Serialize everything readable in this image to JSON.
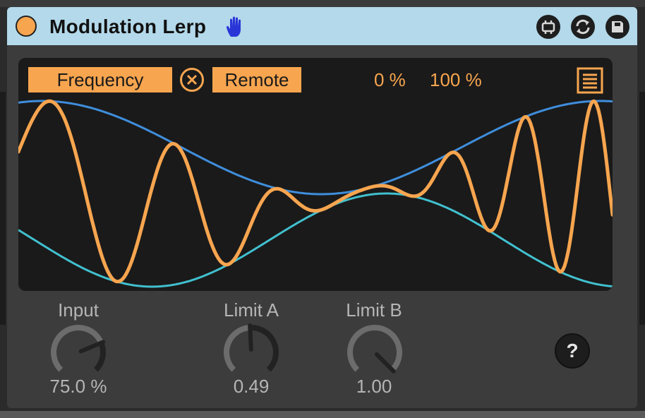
{
  "device": {
    "title": "Modulation Lerp",
    "colors": {
      "accent": "#f7a54f",
      "titlebar": "#b3d9ea",
      "limit_a_curve": "#3f8edc",
      "limit_b_curve": "#41c0cf",
      "panel": "#3c3c3c"
    },
    "icons": {
      "hand": "hand-icon",
      "map": "map-icon",
      "refresh": "refresh-icon",
      "save": "save-icon"
    }
  },
  "display": {
    "parameter_label": "Frequency",
    "clear_icon": "x-circle-icon",
    "remote_label": "Remote",
    "min_percent": "0 %",
    "max_percent": "100 %",
    "menu_icon": "menu-icon"
  },
  "knobs": [
    {
      "label": "Input",
      "value": "75.0 %",
      "fraction": 0.75
    },
    {
      "label": "Limit A",
      "value": "0.49",
      "fraction": 0.49
    },
    {
      "label": "Limit B",
      "value": "1.00",
      "fraction": 1.0
    }
  ],
  "help_label": "?"
}
